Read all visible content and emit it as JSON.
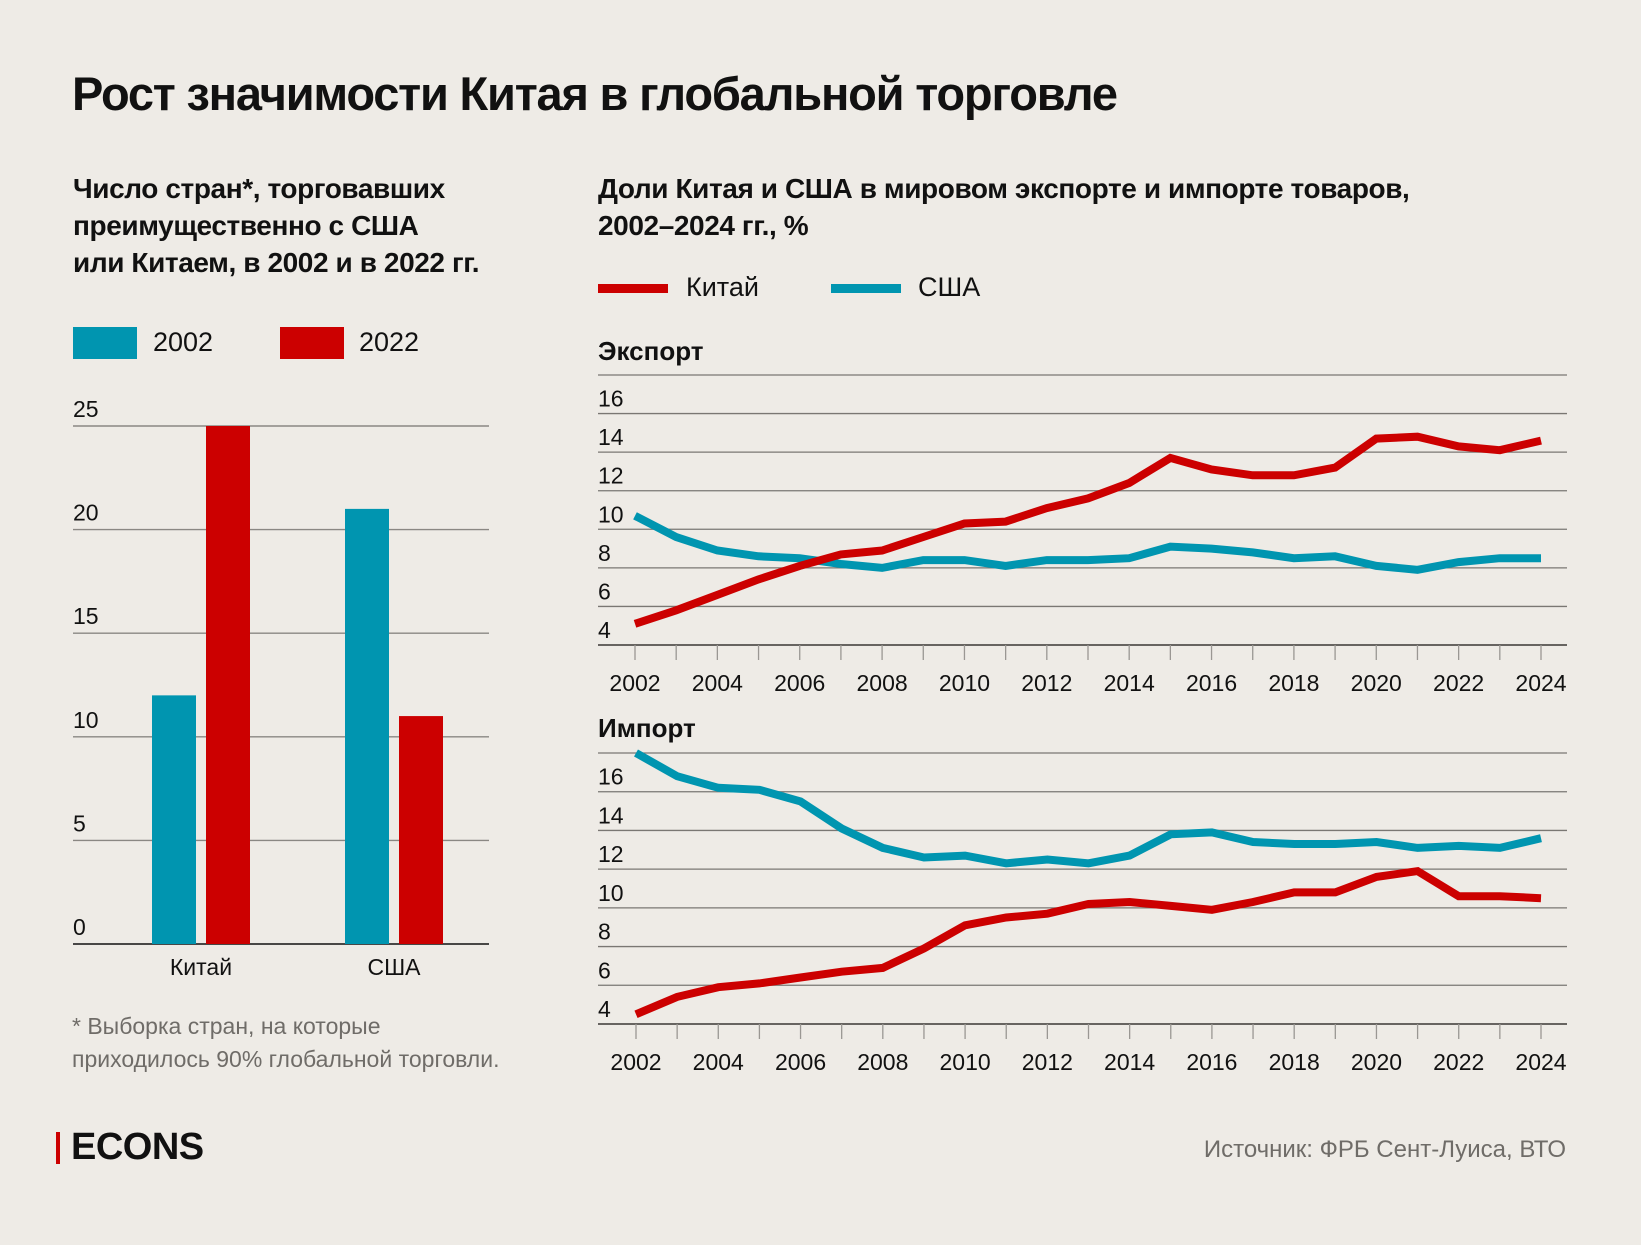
{
  "title": "Рост значимости Китая в глобальной торговле",
  "colors": {
    "china": "#cc0000",
    "usa": "#0095b0",
    "background": "#eeebe6",
    "grid": "#7a7773",
    "muted": "#6f6c68"
  },
  "left_panel": {
    "subtitle_lines": [
      "Число стран*, торговавших",
      "преимущественно с США",
      "или Китаем, в 2002 и в 2022 гг."
    ],
    "legend": [
      {
        "label": "2002",
        "color": "#0095b0"
      },
      {
        "label": "2022",
        "color": "#cc0000"
      }
    ],
    "footnote_lines": [
      "* Выборка стран, на которые",
      "приходилось 90% глобальной торговли."
    ]
  },
  "right_panel": {
    "subtitle_lines": [
      "Доли Китая и США в мировом экспорте и импорте товаров,",
      "2002–2024 гг., %"
    ],
    "legend": [
      {
        "label": "Китай",
        "color": "#cc0000"
      },
      {
        "label": "США",
        "color": "#0095b0"
      }
    ]
  },
  "footer": {
    "brand": "ECONS",
    "source": "Источник: ФРБ Сент-Луиса, ВТО"
  },
  "chart_data": [
    {
      "type": "bar",
      "title": "Число стран*, торговавших преимущественно с США или Китаем, в 2002 и в 2022 гг.",
      "categories": [
        "Китай",
        "США"
      ],
      "series": [
        {
          "name": "2002",
          "color": "#0095b0",
          "values": [
            12,
            21
          ]
        },
        {
          "name": "2022",
          "color": "#cc0000",
          "values": [
            25,
            11
          ]
        }
      ],
      "ylim": [
        0,
        25
      ],
      "yticks": [
        0,
        5,
        10,
        15,
        20,
        25
      ],
      "grid": true,
      "legend": "top-left"
    },
    {
      "type": "line",
      "title": "Экспорт",
      "x": [
        2002,
        2003,
        2004,
        2005,
        2006,
        2007,
        2008,
        2009,
        2010,
        2011,
        2012,
        2013,
        2014,
        2015,
        2016,
        2017,
        2018,
        2019,
        2020,
        2021,
        2022,
        2023,
        2024
      ],
      "xticks": [
        2002,
        2004,
        2006,
        2008,
        2010,
        2012,
        2014,
        2016,
        2018,
        2020,
        2022,
        2024
      ],
      "series": [
        {
          "name": "Китай",
          "color": "#cc0000",
          "values": [
            5.1,
            5.8,
            6.6,
            7.4,
            8.1,
            8.7,
            8.9,
            9.6,
            10.3,
            10.4,
            11.1,
            11.6,
            12.4,
            13.7,
            13.1,
            12.8,
            12.8,
            13.2,
            14.7,
            14.8,
            14.3,
            14.1,
            14.6
          ]
        },
        {
          "name": "США",
          "color": "#0095b0",
          "values": [
            10.7,
            9.6,
            8.9,
            8.6,
            8.5,
            8.2,
            8.0,
            8.4,
            8.4,
            8.1,
            8.4,
            8.4,
            8.5,
            9.1,
            9.0,
            8.8,
            8.5,
            8.6,
            8.1,
            7.9,
            8.3,
            8.5,
            8.5
          ]
        }
      ],
      "ylim": [
        4,
        18
      ],
      "yticks": [
        4,
        6,
        8,
        10,
        12,
        14,
        16
      ],
      "grid": true,
      "ylabel": "%"
    },
    {
      "type": "line",
      "title": "Импорт",
      "x": [
        2002,
        2003,
        2004,
        2005,
        2006,
        2007,
        2008,
        2009,
        2010,
        2011,
        2012,
        2013,
        2014,
        2015,
        2016,
        2017,
        2018,
        2019,
        2020,
        2021,
        2022,
        2023,
        2024
      ],
      "xticks": [
        2002,
        2004,
        2006,
        2008,
        2010,
        2012,
        2014,
        2016,
        2018,
        2020,
        2022,
        2024
      ],
      "series": [
        {
          "name": "Китай",
          "color": "#cc0000",
          "values": [
            4.5,
            5.4,
            5.9,
            6.1,
            6.4,
            6.7,
            6.9,
            7.9,
            9.1,
            9.5,
            9.7,
            10.2,
            10.3,
            10.1,
            9.9,
            10.3,
            10.8,
            10.8,
            11.6,
            11.9,
            10.6,
            10.6,
            10.5
          ]
        },
        {
          "name": "США",
          "color": "#0095b0",
          "values": [
            18.0,
            16.8,
            16.2,
            16.1,
            15.5,
            14.1,
            13.1,
            12.6,
            12.7,
            12.3,
            12.5,
            12.3,
            12.7,
            13.8,
            13.9,
            13.4,
            13.3,
            13.3,
            13.4,
            13.1,
            13.2,
            13.1,
            13.6
          ]
        }
      ],
      "ylim": [
        4,
        18
      ],
      "yticks": [
        4,
        6,
        8,
        10,
        12,
        14,
        16
      ],
      "grid": true,
      "ylabel": "%"
    }
  ]
}
